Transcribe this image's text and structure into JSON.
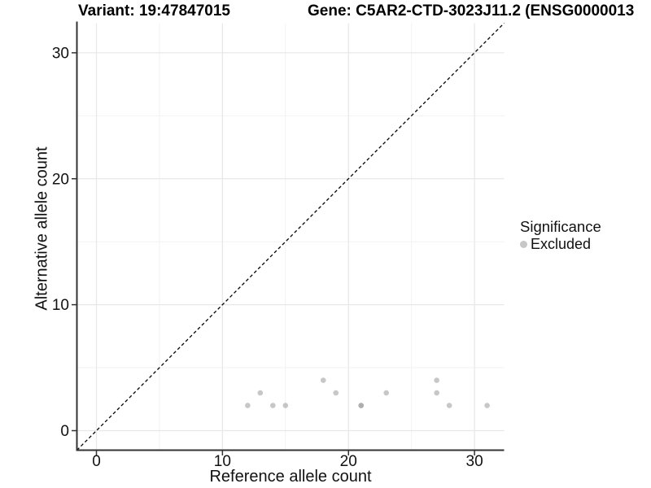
{
  "figure": {
    "variant_title": "Variant: 19:47847015",
    "gene_title": "Gene: C5AR2-CTD-3023J11.2 (ENSG0000013"
  },
  "chart_data": {
    "type": "scatter",
    "xlabel": "Reference allele count",
    "ylabel": "Alternative allele count",
    "xlim": [
      -1.55,
      32.35
    ],
    "ylim": [
      -1.55,
      32.35
    ],
    "x_ticks": {
      "values": [
        0,
        10,
        20,
        30
      ],
      "labels": [
        "0",
        "10",
        "20",
        "30"
      ]
    },
    "y_ticks": {
      "values": [
        0,
        10,
        20,
        30
      ],
      "labels": [
        "0",
        "10",
        "20",
        "30"
      ]
    },
    "x_minor_gridlines": [
      5,
      15,
      25
    ],
    "y_minor_gridlines": [
      5,
      15,
      25
    ],
    "grid": true,
    "identity_line": {
      "style": "dashed",
      "color": "#000000",
      "from": [
        -1.55,
        -1.55
      ],
      "to": [
        32.35,
        32.35
      ]
    },
    "series": [
      {
        "name": "Excluded",
        "point_color": "#999999",
        "point_opacity": 0.55,
        "points": [
          [
            12,
            2
          ],
          [
            13,
            3
          ],
          [
            14,
            2
          ],
          [
            15,
            2
          ],
          [
            18,
            4
          ],
          [
            19,
            3
          ],
          [
            21,
            2
          ],
          [
            21,
            2
          ],
          [
            23,
            3
          ],
          [
            27,
            4
          ],
          [
            27,
            3
          ],
          [
            28,
            2
          ],
          [
            31,
            2
          ]
        ]
      }
    ],
    "legend": {
      "title": "Significance",
      "position": "right",
      "items": [
        {
          "label": "Excluded",
          "color": "#999999"
        }
      ]
    },
    "colors": {
      "background": "#ffffff",
      "axis_line": "#333333",
      "tick_text": "#111111",
      "grid_major": "#e8e8e8",
      "grid_minor": "#f2f2f2"
    }
  }
}
